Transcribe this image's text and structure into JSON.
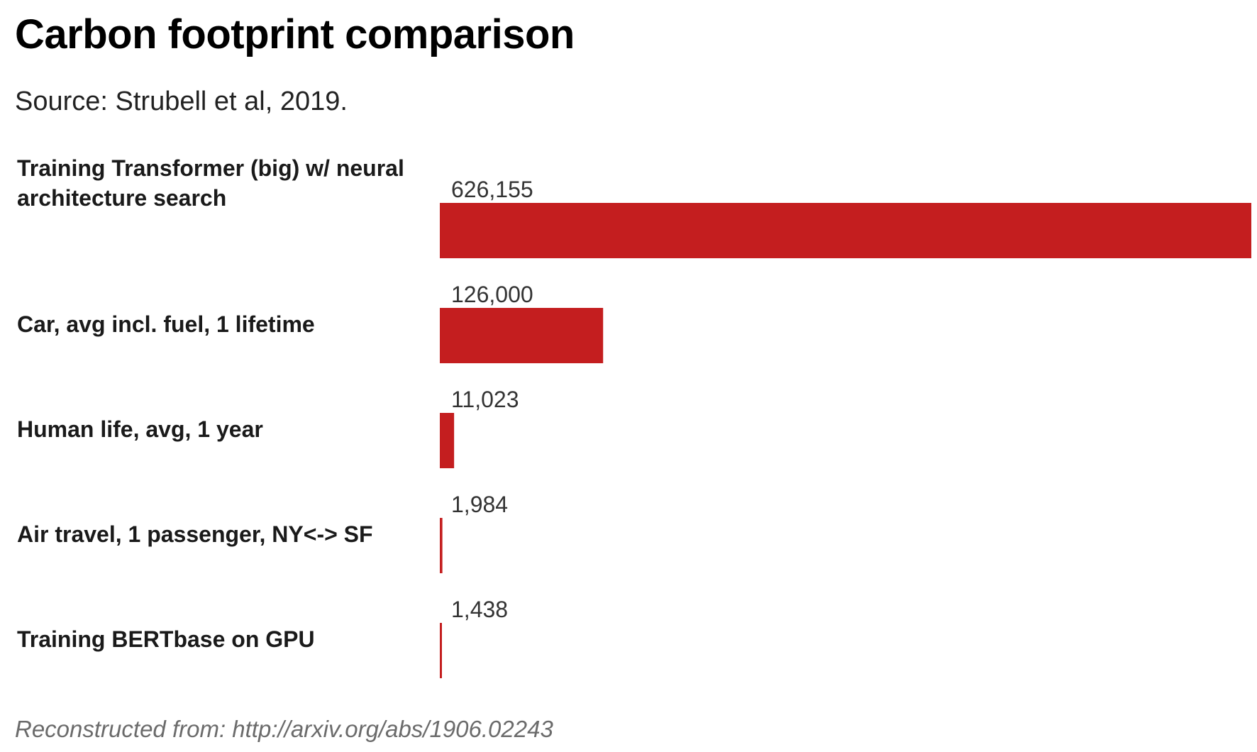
{
  "chart_data": {
    "type": "bar",
    "orientation": "horizontal",
    "title": "Carbon footprint comparison",
    "subtitle": "Source: Strubell et al, 2019.",
    "footer": "Reconstructed from: http://arxiv.org/abs/1906.02243",
    "categories": [
      [
        "Training Transformer (big) w/ neural",
        "architecture search"
      ],
      [
        "Car, avg incl. fuel, 1 lifetime"
      ],
      [
        "Human life, avg, 1 year"
      ],
      [
        "Air travel, 1 passenger, NY<-> SF"
      ],
      [
        "Training BERTbase on GPU"
      ]
    ],
    "values": [
      626155,
      126000,
      11023,
      1984,
      1438
    ],
    "value_labels": [
      "626,155",
      "126,000",
      "11,023",
      "1,984",
      "1,438"
    ],
    "xlim": [
      0,
      626155
    ],
    "grid": false,
    "legend": "none",
    "bar_color": "#c41e1f"
  }
}
